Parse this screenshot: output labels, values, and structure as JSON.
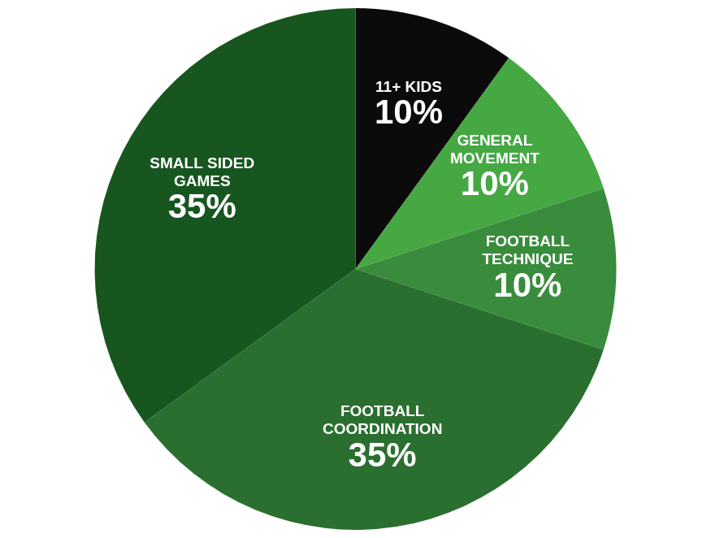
{
  "chart_data": {
    "type": "pie",
    "categories": [
      "11+ KIDS",
      "GENERAL MOVEMENT",
      "FOOTBALL TECHNIQUE",
      "FOOTBALL COORDINATION",
      "SMALL SIDED GAMES"
    ],
    "values": [
      10,
      10,
      10,
      35,
      35
    ],
    "value_labels": [
      "10%",
      "10%",
      "10%",
      "35%",
      "35%"
    ],
    "colors": [
      "#0b0b0b",
      "#45a843",
      "#3a8c3d",
      "#2a6f2f",
      "#17561f"
    ],
    "data_labels": true
  }
}
